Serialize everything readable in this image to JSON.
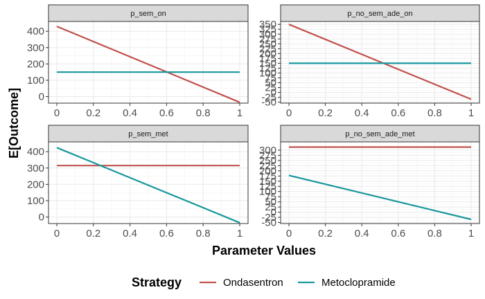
{
  "chart_data": {
    "type": "line",
    "layout": "2x2 facet grid",
    "xlabel": "Parameter Values",
    "ylabel": "E[Outcome]",
    "x_ticks": [
      "0",
      "0.2",
      "0.4",
      "0.6",
      "0.8",
      "1"
    ],
    "xlim": [
      0,
      1
    ],
    "grid": true,
    "legend": {
      "title": "Strategy",
      "placement": "bottom",
      "entries": [
        {
          "name": "Ondasentron",
          "color": "#c0504d"
        },
        {
          "name": "Metoclopramide",
          "color": "#17979c"
        }
      ]
    },
    "panels": [
      {
        "strip": "p_sem_on",
        "ylim": [
          -40,
          460
        ],
        "y_ticks": [
          0,
          100,
          200,
          300,
          400
        ],
        "series": [
          {
            "name": "Ondasentron",
            "x": [
              0,
              1
            ],
            "y": [
              430,
              -35
            ]
          },
          {
            "name": "Metoclopramide",
            "x": [
              0,
              1
            ],
            "y": [
              150,
              150
            ]
          }
        ]
      },
      {
        "strip": "p_no_sem_ade_on",
        "ylim": [
          -55,
          365
        ],
        "y_ticks": [
          -50,
          -25,
          0,
          25,
          50,
          75,
          100,
          125,
          150,
          175,
          200,
          225,
          250,
          275,
          300,
          325,
          350
        ],
        "series": [
          {
            "name": "Ondasentron",
            "x": [
              0,
              1
            ],
            "y": [
              350,
              -35
            ]
          },
          {
            "name": "Metoclopramide",
            "x": [
              0,
              1
            ],
            "y": [
              150,
              150
            ]
          }
        ]
      },
      {
        "strip": "p_sem_met",
        "ylim": [
          -40,
          460
        ],
        "y_ticks": [
          0,
          100,
          200,
          300,
          400
        ],
        "series": [
          {
            "name": "Ondasentron",
            "x": [
              0,
              1
            ],
            "y": [
              315,
              315
            ]
          },
          {
            "name": "Metoclopramide",
            "x": [
              0,
              1
            ],
            "y": [
              425,
              -35
            ]
          }
        ]
      },
      {
        "strip": "p_no_sem_ade_met",
        "ylim": [
          -55,
          340
        ],
        "y_ticks": [
          -50,
          -25,
          0,
          25,
          50,
          75,
          100,
          125,
          150,
          175,
          200,
          225,
          250,
          275,
          300
        ],
        "series": [
          {
            "name": "Ondasentron",
            "x": [
              0,
              1
            ],
            "y": [
              315,
              315
            ]
          },
          {
            "name": "Metoclopramide",
            "x": [
              0,
              1
            ],
            "y": [
              178,
              -35
            ]
          }
        ]
      }
    ]
  }
}
